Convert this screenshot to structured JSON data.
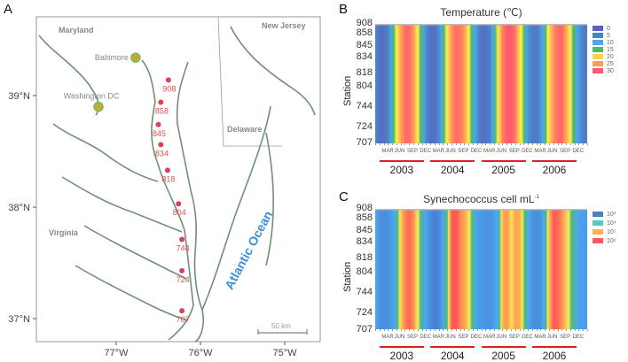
{
  "panel_a": {
    "letter": "A",
    "lat_ticks": [
      "39°N",
      "38°N",
      "37°N"
    ],
    "lat_values": [
      39,
      38,
      37
    ],
    "lon_ticks": [
      "77°W",
      "76°W",
      "75°W"
    ],
    "lon_values": [
      -77,
      -76,
      -75
    ],
    "regions": {
      "maryland": "Maryland",
      "new_jersey": "New Jersey",
      "delaware": "Delaware",
      "virginia": "Virginia",
      "ocean": "Atlantic Ocean"
    },
    "cities": [
      {
        "name": "Baltimore",
        "lat": 39.34,
        "lon": -76.77
      },
      {
        "name": "Washington DC",
        "lat": 38.9,
        "lon": -77.21
      }
    ],
    "stations": [
      {
        "id": "908",
        "lat": 39.14,
        "lon": -76.38
      },
      {
        "id": "858",
        "lat": 38.94,
        "lon": -76.47
      },
      {
        "id": "845",
        "lat": 38.74,
        "lon": -76.5
      },
      {
        "id": "834",
        "lat": 38.56,
        "lon": -76.47
      },
      {
        "id": "818",
        "lat": 38.33,
        "lon": -76.39
      },
      {
        "id": "804",
        "lat": 38.03,
        "lon": -76.26
      },
      {
        "id": "744",
        "lat": 37.71,
        "lon": -76.22
      },
      {
        "id": "724",
        "lat": 37.43,
        "lon": -76.22
      },
      {
        "id": "707",
        "lat": 37.07,
        "lon": -76.22
      }
    ],
    "scale_bar": "50 km",
    "colors": {
      "station": "#d9405a",
      "station_label": "#d9534f",
      "city_fill": "#c8a83c",
      "city_ring": "#6cc04a",
      "coast": "#6f8f7a",
      "ocean_label": "#3a8fd8"
    }
  },
  "chart_data": [
    {
      "type": "heatmap",
      "letter": "B",
      "title": "Temperature (℃)",
      "ylabel": "Station",
      "stations": [
        "908",
        "858",
        "845",
        "834",
        "818",
        "804",
        "744",
        "724",
        "707"
      ],
      "month_ticks": [
        "MAR",
        "JUN",
        "SEP",
        "DEC"
      ],
      "years": [
        "2003",
        "2004",
        "2005",
        "2006"
      ],
      "time_range": [
        "2002-12",
        "2007-02"
      ],
      "legend": {
        "labels": [
          "0",
          "5",
          "10",
          "15",
          "20",
          "25",
          "30"
        ],
        "colors": [
          "#5a5fc4",
          "#4f7fc4",
          "#4aa8f0",
          "#55b855",
          "#ffd24f",
          "#ff9f55",
          "#ff5a70"
        ]
      },
      "monthly_values": [
        6,
        3,
        3,
        6,
        12,
        18,
        24,
        27,
        27,
        24,
        17,
        12,
        6,
        3,
        3,
        7,
        13,
        19,
        25,
        27,
        26,
        24,
        17,
        12,
        7,
        3,
        3,
        6,
        12,
        19,
        26,
        28,
        28,
        26,
        19,
        14,
        7,
        5,
        4,
        8,
        13,
        20,
        25,
        27,
        27,
        23,
        17,
        12,
        8,
        5,
        4
      ]
    },
    {
      "type": "heatmap",
      "letter": "C",
      "title": "Synechococcus cell mL",
      "title_sup": "-1",
      "ylabel": "Station",
      "stations": [
        "908",
        "858",
        "845",
        "834",
        "818",
        "804",
        "744",
        "724",
        "707"
      ],
      "month_ticks": [
        "MAR",
        "JUN",
        "SEP",
        "DEC"
      ],
      "years": [
        "2003",
        "2004",
        "2005",
        "2006"
      ],
      "time_range": [
        "2002-12",
        "2007-02"
      ],
      "legend": {
        "labels": [
          "10³",
          "10⁴",
          "10⁵",
          "10⁶"
        ],
        "colors": [
          "#4d7fc4",
          "#55c8d0",
          "#ffb050",
          "#ff5a5a"
        ]
      },
      "monthly_values_log10": [
        3.6,
        3.3,
        3.2,
        3.3,
        3.5,
        3.9,
        4.8,
        5.4,
        5.6,
        5.2,
        4.5,
        3.8,
        3.5,
        3.2,
        3.0,
        3.2,
        3.6,
        4.2,
        5.8,
        5.8,
        5.3,
        5.1,
        4.6,
        3.9,
        3.5,
        3.4,
        3.3,
        3.3,
        3.5,
        3.7,
        5.0,
        5.2,
        4.6,
        5.1,
        5.0,
        4.2,
        3.6,
        3.3,
        3.2,
        3.3,
        3.8,
        5.0,
        5.7,
        5.6,
        5.2,
        4.8,
        4.2,
        3.8,
        3.5,
        3.5,
        3.4
      ]
    }
  ]
}
